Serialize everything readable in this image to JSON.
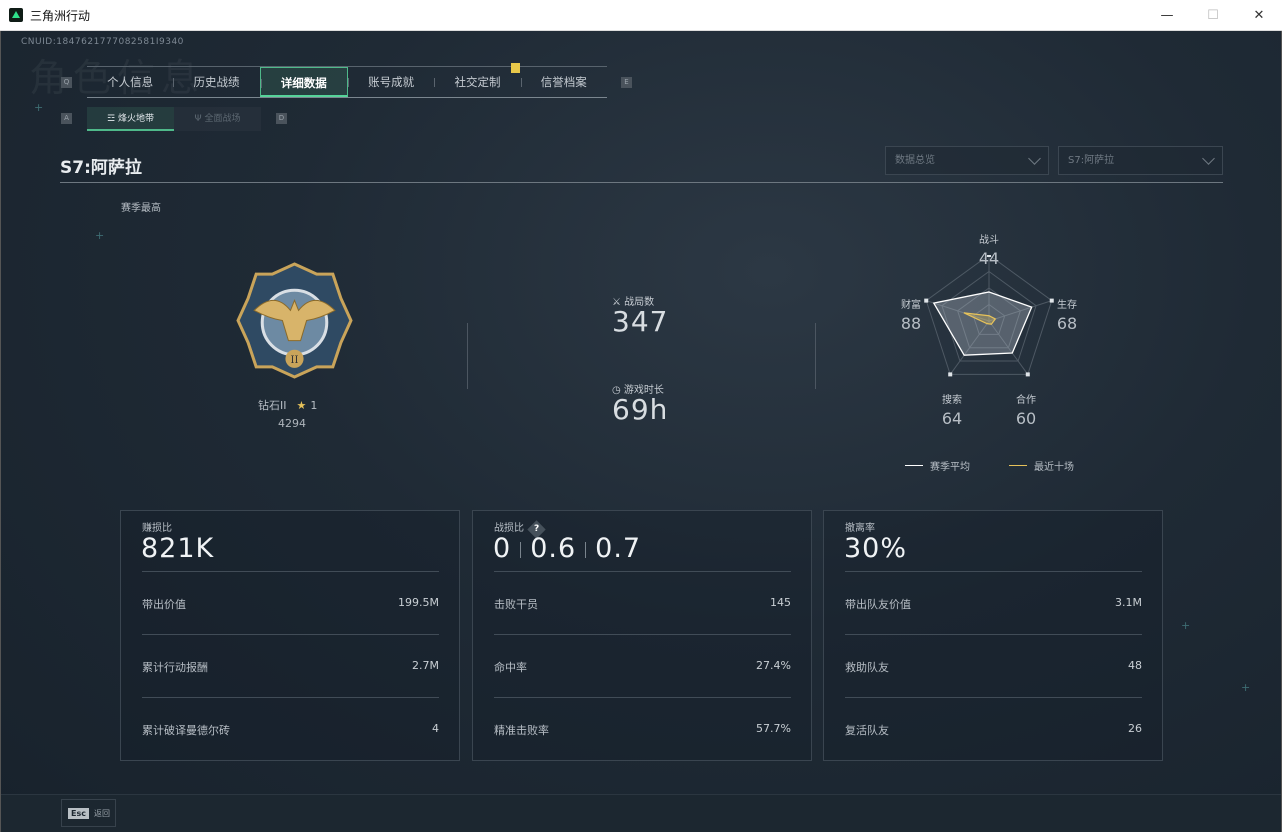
{
  "window": {
    "title": "三角洲行动",
    "minimize": "—",
    "maximize": "☐",
    "close": "✕"
  },
  "uid": "CNUID:1847621777082581I9340",
  "bg_title": "角色信息",
  "tabs": [
    {
      "label": "个人信息"
    },
    {
      "label": "历史战绩"
    },
    {
      "label": "详细数据",
      "active": true
    },
    {
      "label": "账号成就"
    },
    {
      "label": "社交定制"
    },
    {
      "label": "信誉档案"
    }
  ],
  "key_hints": {
    "prev_tab": "Q",
    "next_tab": "E",
    "prev_sub": "A",
    "next_sub": "D"
  },
  "subtabs": [
    {
      "label": "烽火地带",
      "icon": "hazard-icon",
      "active": true
    },
    {
      "label": "全面战场",
      "icon": "battlefield-icon"
    }
  ],
  "season_title": "S7:阿萨拉",
  "dropdowns": {
    "view": "数据总览",
    "season": "S7:阿萨拉"
  },
  "season_best_label": "赛季最高",
  "rank": {
    "name": "钻石II",
    "stars": "1",
    "score": "4294"
  },
  "matches": {
    "label": "战局数",
    "value": "347"
  },
  "playtime": {
    "label": "游戏时长",
    "value": "69h"
  },
  "radar": {
    "axes": [
      {
        "label": "战斗",
        "value": "44"
      },
      {
        "label": "生存",
        "value": "68"
      },
      {
        "label": "合作",
        "value": "60"
      },
      {
        "label": "搜索",
        "value": "64"
      },
      {
        "label": "财富",
        "value": "88"
      }
    ],
    "max": 100,
    "season_avg": [
      44,
      68,
      60,
      64,
      88
    ],
    "recent": [
      8,
      10,
      6,
      5,
      40
    ],
    "legend": {
      "season_avg": "赛季平均",
      "recent": "最近十场"
    },
    "colors": {
      "season_avg": "#ffffff",
      "recent": "#e6c25a"
    }
  },
  "cards": [
    {
      "title": "赚损比",
      "value": "821K",
      "rows": [
        {
          "label": "带出价值",
          "value": "199.5M"
        },
        {
          "label": "累计行动报酬",
          "value": "2.7M"
        },
        {
          "label": "累计破译曼德尔砖",
          "value": "4"
        }
      ]
    },
    {
      "title": "战损比",
      "help": "?",
      "kd": [
        "0",
        "0.6",
        "0.7"
      ],
      "rows": [
        {
          "label": "击败干员",
          "value": "145"
        },
        {
          "label": "命中率",
          "value": "27.4%"
        },
        {
          "label": "精准击败率",
          "value": "57.7%"
        }
      ]
    },
    {
      "title": "撤离率",
      "value": "30%",
      "rows": [
        {
          "label": "带出队友价值",
          "value": "3.1M"
        },
        {
          "label": "救助队友",
          "value": "48"
        },
        {
          "label": "复活队友",
          "value": "26"
        }
      ]
    }
  ],
  "footer": {
    "esc_key": "Esc",
    "esc_label": "返回"
  }
}
